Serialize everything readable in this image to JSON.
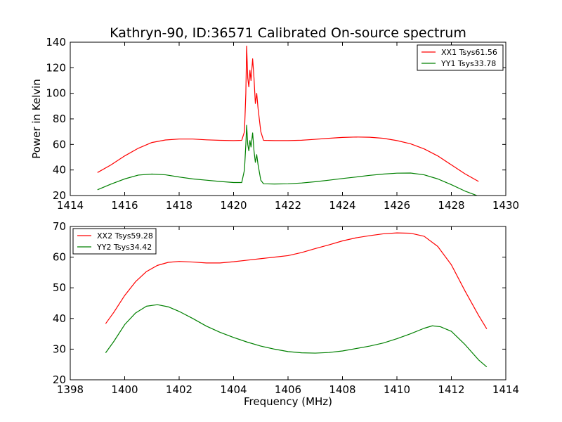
{
  "figure": {
    "title": "Kathryn-90, ID:36571 Calibrated On-source spectrum",
    "xlabel": "Frequency (MHz)",
    "ylabel": "Power in Kelvin"
  },
  "chart_data": [
    {
      "type": "line",
      "xlim": [
        1414,
        1430
      ],
      "ylim": [
        20,
        140
      ],
      "xticks": [
        "1414",
        "1416",
        "1418",
        "1420",
        "1422",
        "1424",
        "1426",
        "1428",
        "1430"
      ],
      "yticks": [
        "20",
        "40",
        "60",
        "80",
        "100",
        "120",
        "140"
      ],
      "legend_position": "top-right",
      "grid": false,
      "series": [
        {
          "name": "XX1 Tsys61.56",
          "color": "#ff0000",
          "points": [
            [
              1415.0,
              38
            ],
            [
              1415.5,
              44
            ],
            [
              1416.0,
              51
            ],
            [
              1416.5,
              57
            ],
            [
              1417.0,
              61.5
            ],
            [
              1417.5,
              63.5
            ],
            [
              1418.0,
              64.2
            ],
            [
              1418.5,
              64.2
            ],
            [
              1419.0,
              63.6
            ],
            [
              1419.5,
              63.2
            ],
            [
              1420.0,
              63
            ],
            [
              1420.3,
              63.2
            ],
            [
              1420.4,
              70
            ],
            [
              1420.45,
              100
            ],
            [
              1420.48,
              137
            ],
            [
              1420.52,
              112
            ],
            [
              1420.56,
              105
            ],
            [
              1420.6,
              118
            ],
            [
              1420.64,
              110
            ],
            [
              1420.7,
              127
            ],
            [
              1420.75,
              112
            ],
            [
              1420.8,
              92
            ],
            [
              1420.85,
              100
            ],
            [
              1420.9,
              88
            ],
            [
              1421.0,
              70
            ],
            [
              1421.1,
              63.2
            ],
            [
              1421.5,
              63
            ],
            [
              1422.0,
              63
            ],
            [
              1422.5,
              63.3
            ],
            [
              1423.0,
              64
            ],
            [
              1423.5,
              64.8
            ],
            [
              1424.0,
              65.5
            ],
            [
              1424.5,
              65.8
            ],
            [
              1425.0,
              65.6
            ],
            [
              1425.5,
              64.8
            ],
            [
              1426.0,
              63
            ],
            [
              1426.5,
              60.5
            ],
            [
              1427.0,
              56.5
            ],
            [
              1427.5,
              51
            ],
            [
              1428.0,
              44
            ],
            [
              1428.5,
              37
            ],
            [
              1429.0,
              31
            ]
          ]
        },
        {
          "name": "YY1 Tsys33.78",
          "color": "#008000",
          "points": [
            [
              1415.0,
              24.5
            ],
            [
              1415.5,
              29
            ],
            [
              1416.0,
              33
            ],
            [
              1416.5,
              36
            ],
            [
              1417.0,
              36.8
            ],
            [
              1417.5,
              36.2
            ],
            [
              1418.0,
              34.5
            ],
            [
              1418.5,
              33
            ],
            [
              1419.0,
              32
            ],
            [
              1419.5,
              31
            ],
            [
              1420.0,
              30.2
            ],
            [
              1420.3,
              30.2
            ],
            [
              1420.4,
              40
            ],
            [
              1420.45,
              60
            ],
            [
              1420.48,
              75
            ],
            [
              1420.52,
              60
            ],
            [
              1420.56,
              55
            ],
            [
              1420.6,
              63
            ],
            [
              1420.64,
              58
            ],
            [
              1420.7,
              69
            ],
            [
              1420.75,
              55
            ],
            [
              1420.8,
              46
            ],
            [
              1420.85,
              52
            ],
            [
              1420.9,
              44
            ],
            [
              1421.0,
              32
            ],
            [
              1421.1,
              29.2
            ],
            [
              1421.5,
              29
            ],
            [
              1422.0,
              29.2
            ],
            [
              1422.5,
              29.8
            ],
            [
              1423.0,
              30.8
            ],
            [
              1423.5,
              32
            ],
            [
              1424.0,
              33.3
            ],
            [
              1424.5,
              34.5
            ],
            [
              1425.0,
              35.8
            ],
            [
              1425.5,
              36.8
            ],
            [
              1426.0,
              37.5
            ],
            [
              1426.5,
              37.6
            ],
            [
              1427.0,
              36.2
            ],
            [
              1427.5,
              33
            ],
            [
              1428.0,
              28.5
            ],
            [
              1428.5,
              23.5
            ],
            [
              1429.0,
              19.5
            ]
          ]
        }
      ]
    },
    {
      "type": "line",
      "xlim": [
        1398,
        1414
      ],
      "ylim": [
        20,
        70
      ],
      "xticks": [
        "1398",
        "1400",
        "1402",
        "1404",
        "1406",
        "1408",
        "1410",
        "1412",
        "1414"
      ],
      "yticks": [
        "20",
        "30",
        "40",
        "50",
        "60",
        "70"
      ],
      "legend_position": "top-left",
      "grid": false,
      "series": [
        {
          "name": "XX2 Tsys59.28",
          "color": "#ff0000",
          "points": [
            [
              1399.3,
              38.3
            ],
            [
              1399.6,
              42
            ],
            [
              1400.0,
              47.5
            ],
            [
              1400.4,
              52
            ],
            [
              1400.8,
              55.3
            ],
            [
              1401.2,
              57.3
            ],
            [
              1401.6,
              58.3
            ],
            [
              1402.0,
              58.6
            ],
            [
              1402.5,
              58.4
            ],
            [
              1403.0,
              58.1
            ],
            [
              1403.5,
              58.1
            ],
            [
              1404.0,
              58.5
            ],
            [
              1404.5,
              59
            ],
            [
              1405.0,
              59.5
            ],
            [
              1405.5,
              60
            ],
            [
              1406.0,
              60.5
            ],
            [
              1406.5,
              61.5
            ],
            [
              1407.0,
              62.8
            ],
            [
              1407.5,
              64
            ],
            [
              1408.0,
              65.3
            ],
            [
              1408.5,
              66.3
            ],
            [
              1409.0,
              67
            ],
            [
              1409.5,
              67.6
            ],
            [
              1410.0,
              67.9
            ],
            [
              1410.5,
              67.8
            ],
            [
              1411.0,
              66.8
            ],
            [
              1411.5,
              63.5
            ],
            [
              1412.0,
              57.5
            ],
            [
              1412.5,
              49
            ],
            [
              1413.0,
              41
            ],
            [
              1413.3,
              36.6
            ]
          ]
        },
        {
          "name": "YY2 Tsys34.42",
          "color": "#008000",
          "points": [
            [
              1399.3,
              28.8
            ],
            [
              1399.6,
              32.5
            ],
            [
              1400.0,
              38
            ],
            [
              1400.4,
              41.8
            ],
            [
              1400.8,
              44
            ],
            [
              1401.2,
              44.5
            ],
            [
              1401.6,
              43.8
            ],
            [
              1402.0,
              42.3
            ],
            [
              1402.5,
              40
            ],
            [
              1403.0,
              37.5
            ],
            [
              1403.5,
              35.5
            ],
            [
              1404.0,
              33.8
            ],
            [
              1404.5,
              32.3
            ],
            [
              1405.0,
              31
            ],
            [
              1405.5,
              30
            ],
            [
              1406.0,
              29.2
            ],
            [
              1406.5,
              28.8
            ],
            [
              1407.0,
              28.7
            ],
            [
              1407.5,
              28.9
            ],
            [
              1408.0,
              29.4
            ],
            [
              1408.5,
              30.2
            ],
            [
              1409.0,
              31
            ],
            [
              1409.5,
              32
            ],
            [
              1410.0,
              33.4
            ],
            [
              1410.5,
              35
            ],
            [
              1411.0,
              36.8
            ],
            [
              1411.3,
              37.6
            ],
            [
              1411.6,
              37.3
            ],
            [
              1412.0,
              35.8
            ],
            [
              1412.5,
              31.5
            ],
            [
              1413.0,
              26.5
            ],
            [
              1413.3,
              24.2
            ]
          ]
        }
      ]
    }
  ]
}
